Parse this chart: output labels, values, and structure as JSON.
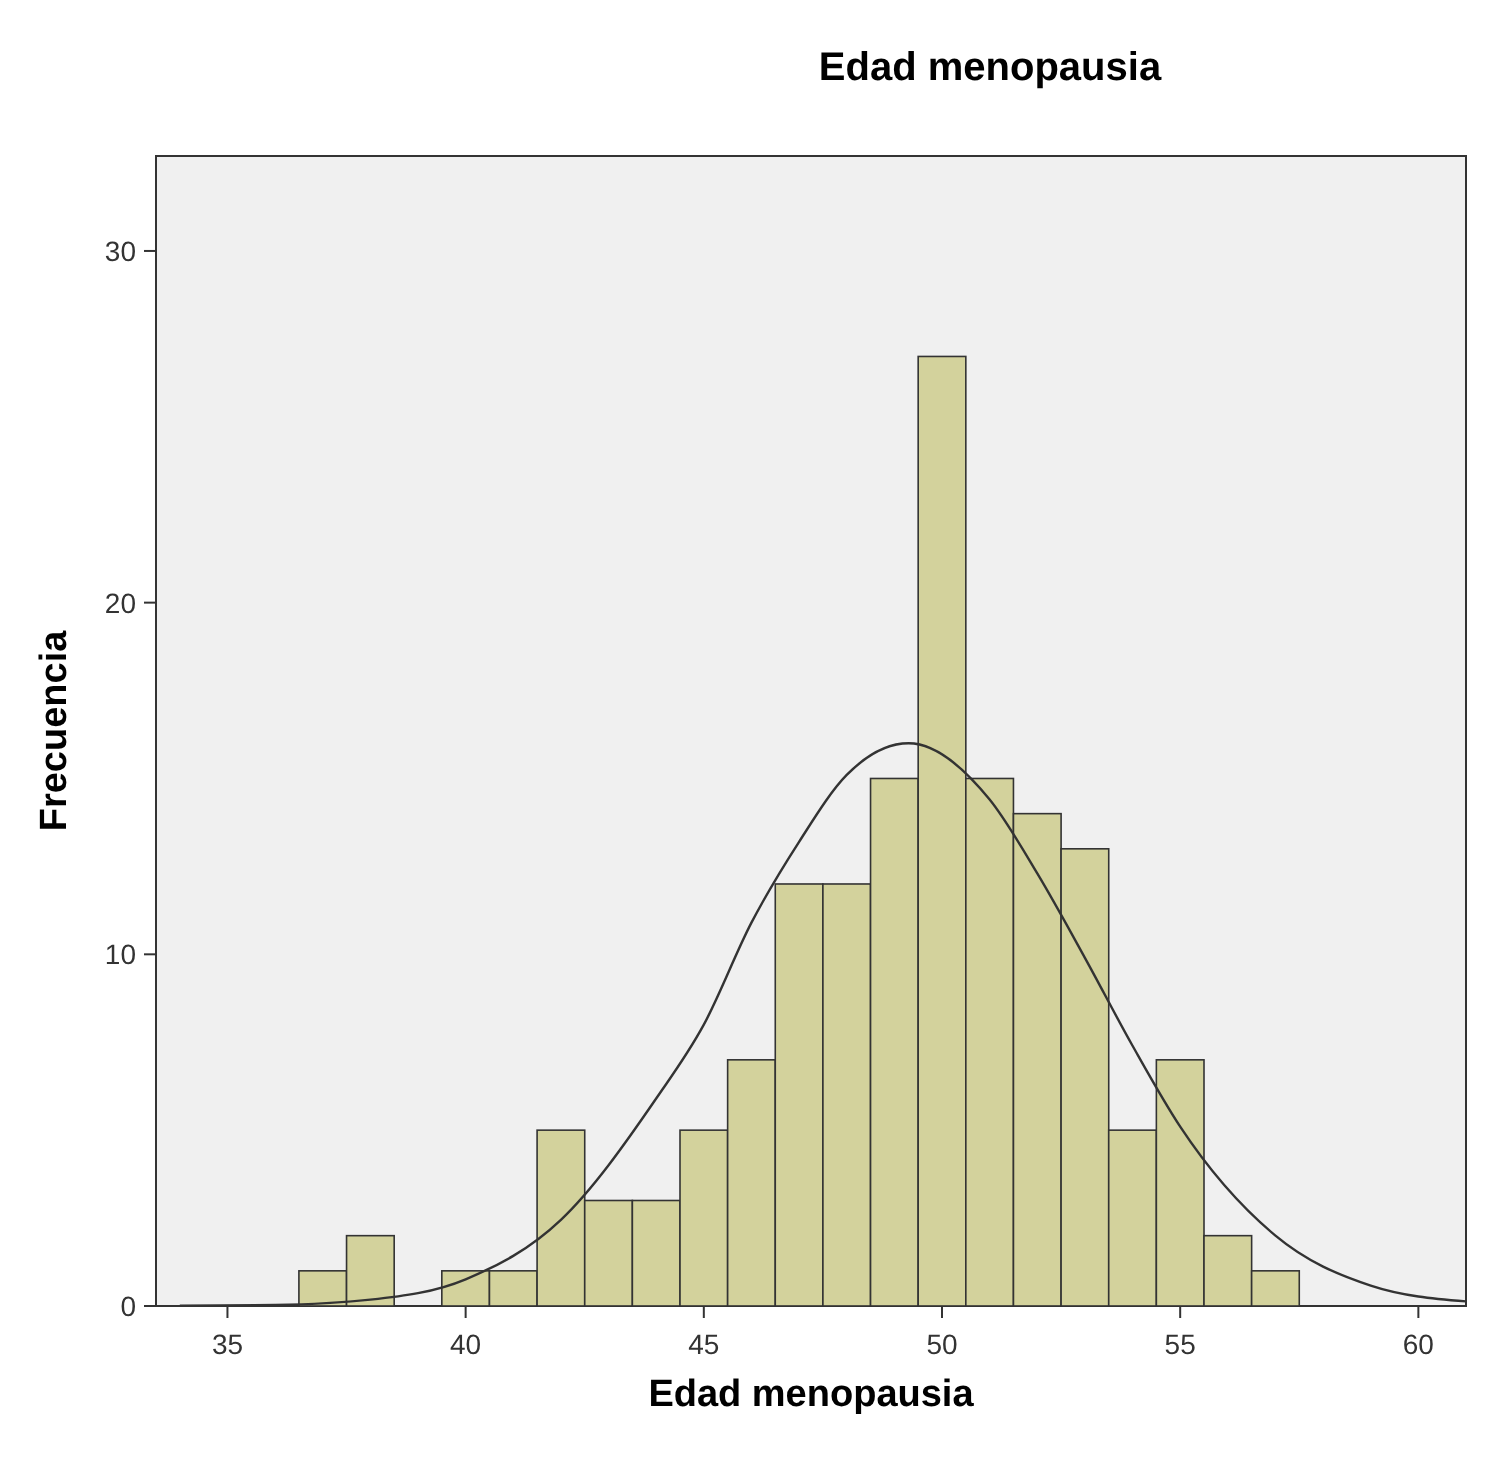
{
  "chart_data": {
    "type": "histogram",
    "title": "Edad menopausia",
    "xlabel": "Edad menopausia",
    "ylabel": "Frecuencia",
    "bins": [
      36.5,
      37.5,
      38.5,
      39.5,
      40.5,
      41.5,
      42.5,
      43.5,
      44.5,
      45.5,
      46.5,
      47.5,
      48.5,
      49.5,
      50.5,
      51.5,
      52.5,
      53.5,
      54.5,
      55.5,
      56.5,
      57.5
    ],
    "values": [
      1,
      2,
      0,
      1,
      1,
      5,
      3,
      3,
      5,
      7,
      12,
      12,
      15,
      27,
      15,
      14,
      13,
      5,
      7,
      2,
      1
    ],
    "color": "#d3d29c",
    "series": [
      {
        "type": "line",
        "color": "#333333",
        "x": [
          34,
          36,
          38,
          40,
          42,
          44,
          45,
          46,
          47,
          48,
          49.3,
          51,
          52,
          53,
          54,
          55,
          57,
          59,
          61
        ],
        "values": [
          0.01,
          0.03,
          0.18,
          0.76,
          2.45,
          5.9,
          8.0,
          10.9,
          13.2,
          15.1,
          16,
          14.4,
          12.3,
          9.9,
          7.4,
          5.1,
          2.0,
          0.58,
          0.13
        ]
      }
    ],
    "xlim": [
      33.5,
      61
    ],
    "ylim": [
      0,
      32.7
    ],
    "xticks": [
      35,
      40,
      45,
      50,
      55,
      60
    ],
    "yticks": [
      0,
      10,
      20,
      30
    ],
    "grid": false
  }
}
